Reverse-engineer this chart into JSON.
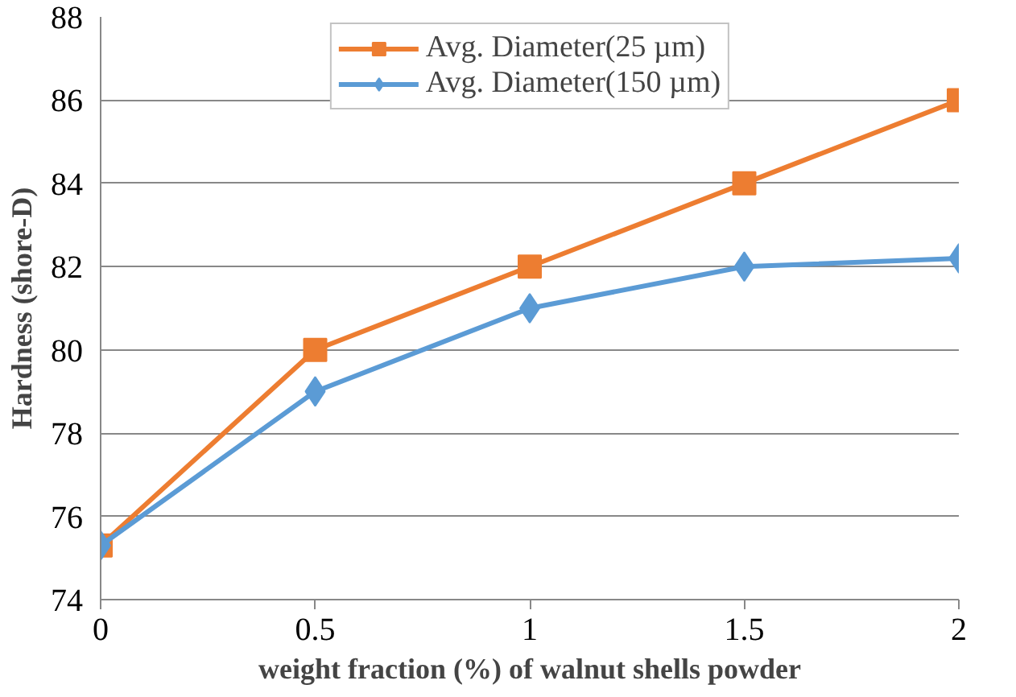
{
  "chart_data": {
    "type": "line",
    "xlabel": "weight fraction (%) of walnut shells powder",
    "ylabel": "Hardness (shore-D)",
    "x": [
      0,
      0.5,
      1,
      1.5,
      2
    ],
    "series": [
      {
        "name": "Avg. Diameter(25 µm)",
        "color": "#ed7d31",
        "marker": "square",
        "values": [
          75.3,
          80,
          82,
          84,
          86
        ]
      },
      {
        "name": "Avg. Diameter(150 µm)",
        "color": "#5b9bd5",
        "marker": "diamond",
        "values": [
          75.3,
          79,
          81,
          82,
          82.2
        ]
      }
    ],
    "xlim": [
      0,
      2
    ],
    "xticks": [
      0,
      {
        "value": 0.5,
        "label": "0.5"
      },
      1,
      {
        "value": 1.5,
        "label": "1.5"
      },
      2
    ],
    "ylim": [
      74,
      88
    ],
    "yticks": [
      74,
      76,
      78,
      80,
      82,
      84,
      86,
      88
    ],
    "grid": "y",
    "legend": "top",
    "line_style": "solid"
  }
}
